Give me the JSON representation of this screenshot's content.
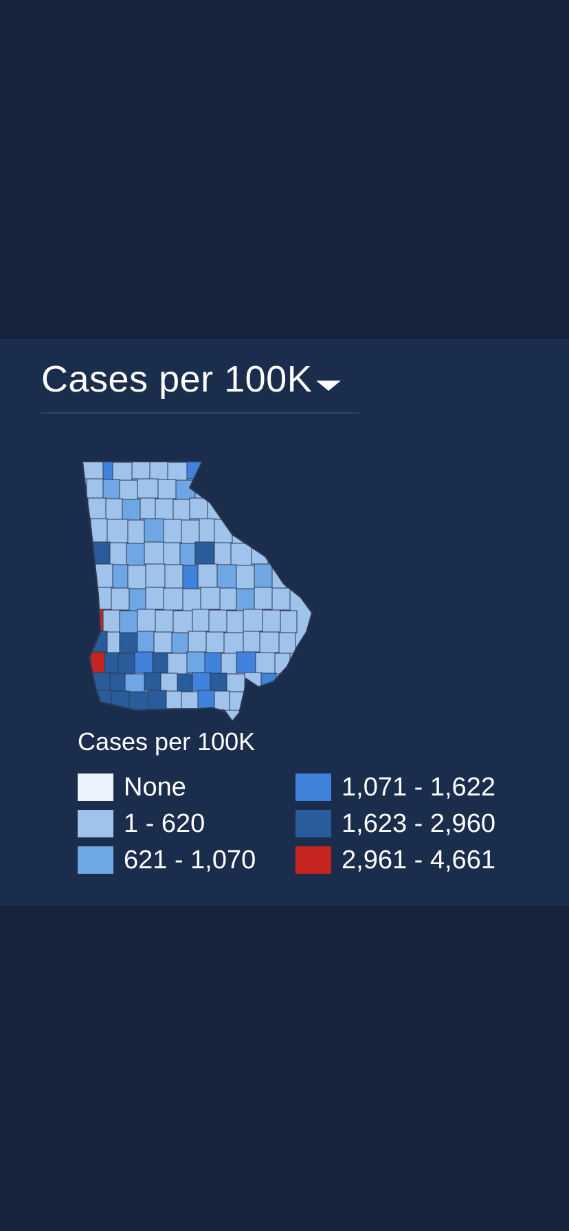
{
  "selector": {
    "label": "Cases per 100K"
  },
  "map": {
    "region": "Georgia counties"
  },
  "legend": {
    "title": "Cases per 100K",
    "items": [
      {
        "label": "None",
        "color": "#eaf3fd"
      },
      {
        "label": "1 - 620",
        "color": "#a0c3ec"
      },
      {
        "label": "621 - 1,070",
        "color": "#6fa6e4"
      },
      {
        "label": "1,071 - 1,622",
        "color": "#4082dc"
      },
      {
        "label": "1,623 - 2,960",
        "color": "#2a5b9a"
      },
      {
        "label": "2,961 - 4,661",
        "color": "#c6251f"
      }
    ]
  },
  "colors": {
    "page_bg": "#17223b",
    "panel_bg": "#1a2d4c",
    "county_border": "#2b3954"
  }
}
